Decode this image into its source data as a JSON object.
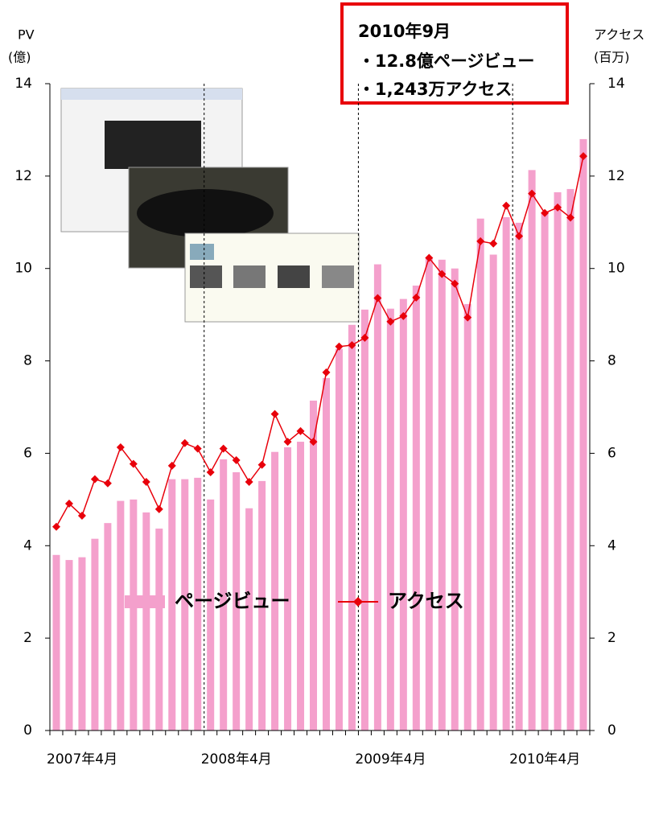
{
  "chart_data": {
    "type": "bar-line",
    "y_axis_title": [
      "PV",
      "(億)"
    ],
    "y2_axis_title": [
      "アクセス",
      "(百万)"
    ],
    "annotation": [
      "2010年9月",
      "・12.8億ページビュー",
      "・1,243万アクセス"
    ],
    "categories": [
      "2007年4月",
      null,
      null,
      null,
      null,
      null,
      null,
      null,
      null,
      null,
      null,
      null,
      "2008年4月",
      null,
      null,
      null,
      null,
      null,
      null,
      null,
      null,
      null,
      null,
      null,
      "2009年4月",
      null,
      null,
      null,
      null,
      null,
      null,
      null,
      null,
      null,
      null,
      null,
      "2010年4月",
      null,
      null,
      null,
      null,
      null
    ],
    "series": [
      {
        "name": "ページビュー",
        "type": "bar",
        "color": "#f4a0cc",
        "values": [
          3.8,
          3.69,
          3.75,
          4.15,
          4.49,
          4.97,
          5.0,
          4.72,
          4.37,
          5.44,
          5.44,
          5.47,
          5.0,
          5.87,
          5.59,
          4.81,
          5.4,
          6.03,
          6.13,
          6.25,
          7.14,
          7.63,
          8.26,
          8.78,
          9.11,
          10.09,
          9.13,
          9.34,
          9.63,
          10.24,
          10.19,
          10.0,
          9.23,
          11.08,
          10.3,
          11.11,
          10.99,
          12.13,
          11.2,
          11.65,
          11.72,
          12.8
        ]
      },
      {
        "name": "アクセス",
        "type": "line",
        "axis": "y2",
        "color": "#e8000b",
        "values": [
          4.41,
          4.91,
          4.65,
          5.44,
          5.35,
          6.13,
          5.77,
          5.38,
          4.79,
          5.73,
          6.22,
          6.1,
          5.59,
          6.1,
          5.85,
          5.38,
          5.75,
          6.85,
          6.25,
          6.48,
          6.25,
          7.75,
          8.31,
          8.34,
          8.5,
          9.36,
          8.85,
          8.97,
          9.37,
          10.23,
          9.88,
          9.67,
          8.94,
          10.59,
          10.54,
          11.36,
          10.7,
          11.62,
          11.2,
          11.32,
          11.1,
          12.43
        ]
      }
    ],
    "ylim": [
      0,
      14
    ],
    "yticks": [
      0,
      2,
      4,
      6,
      8,
      10,
      12,
      14
    ],
    "y2lim": [
      0,
      14
    ],
    "y2ticks": [
      0,
      2,
      4,
      6,
      8,
      10,
      12,
      14
    ]
  }
}
